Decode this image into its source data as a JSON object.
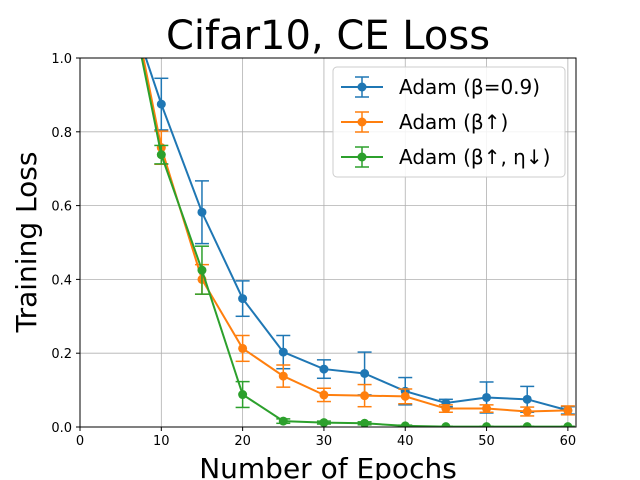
{
  "chart_data": {
    "type": "line",
    "title": "Cifar10, CE Loss",
    "xlabel": "Number of Epochs",
    "ylabel": "Training Loss",
    "xlim": [
      0,
      61
    ],
    "ylim": [
      0.0,
      1.0
    ],
    "xticks": [
      0,
      10,
      20,
      30,
      40,
      50,
      60
    ],
    "xtick_labels": [
      "0",
      "10",
      "20",
      "30",
      "40",
      "50",
      "60"
    ],
    "yticks": [
      0.0,
      0.2,
      0.4,
      0.6,
      0.8,
      1.0
    ],
    "ytick_labels": [
      "0.0",
      "0.2",
      "0.4",
      "0.6",
      "0.8",
      "1.0"
    ],
    "grid": true,
    "legend_position": "top-right",
    "x": [
      10,
      15,
      20,
      25,
      30,
      35,
      40,
      45,
      50,
      55,
      60
    ],
    "series": [
      {
        "name": "Adam (β=0.9)",
        "color": "#1f77b4",
        "pre_point": [
          8.1,
          1.0
        ],
        "values": [
          0.875,
          0.582,
          0.348,
          0.203,
          0.157,
          0.145,
          0.097,
          0.065,
          0.08,
          0.075,
          0.045
        ],
        "errors": [
          0.07,
          0.085,
          0.048,
          0.045,
          0.025,
          0.058,
          0.037,
          0.01,
          0.042,
          0.035,
          0.01
        ]
      },
      {
        "name": "Adam (β↑)",
        "color": "#ff7f0e",
        "pre_point": [
          7.8,
          1.0
        ],
        "values": [
          0.757,
          0.4,
          0.213,
          0.138,
          0.087,
          0.085,
          0.083,
          0.05,
          0.05,
          0.042,
          0.045
        ],
        "errors": [
          0.045,
          0.04,
          0.035,
          0.03,
          0.018,
          0.03,
          0.02,
          0.01,
          0.01,
          0.012,
          0.012
        ]
      },
      {
        "name": "Adam (β↑, η↓)",
        "color": "#2ca02c",
        "pre_point": [
          7.6,
          1.0
        ],
        "values": [
          0.738,
          0.425,
          0.088,
          0.016,
          0.012,
          0.01,
          0.003,
          0.001,
          0.001,
          0.001,
          0.001
        ],
        "errors": [
          0.025,
          0.065,
          0.035,
          0.006,
          0.004,
          0.004,
          0.002,
          0.001,
          0.001,
          0.001,
          0.001
        ]
      }
    ]
  }
}
